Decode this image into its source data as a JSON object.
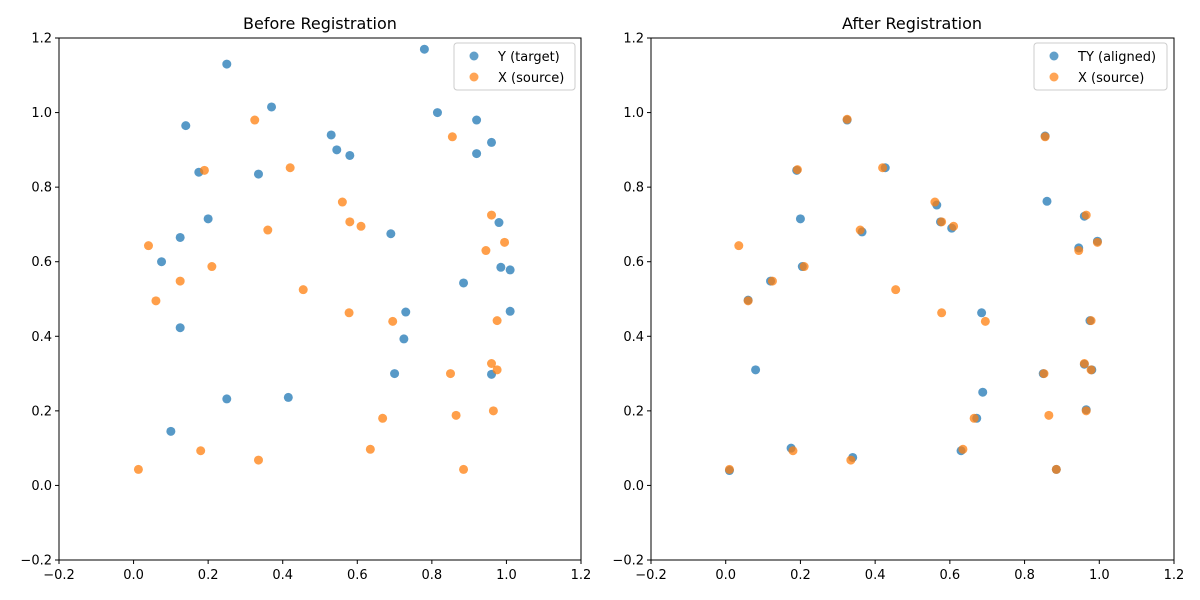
{
  "chart_data": [
    {
      "type": "scatter",
      "title": "Before Registration",
      "xlim": [
        -0.2,
        1.2
      ],
      "ylim": [
        -0.2,
        1.2
      ],
      "xticks": [
        "−0.2",
        "0.0",
        "0.2",
        "0.4",
        "0.6",
        "0.8",
        "1.0",
        "1.2"
      ],
      "yticks": [
        "−0.2",
        "0.0",
        "0.2",
        "0.4",
        "0.6",
        "0.8",
        "1.0",
        "1.2"
      ],
      "grid": false,
      "legend_placement": "top-right",
      "series": [
        {
          "name": "Y (target)",
          "color": "#1f77b4",
          "points": [
            [
              0.78,
              1.17
            ],
            [
              0.25,
              1.13
            ],
            [
              0.37,
              1.015
            ],
            [
              0.815,
              1.0
            ],
            [
              0.92,
              0.98
            ],
            [
              0.14,
              0.965
            ],
            [
              0.53,
              0.94
            ],
            [
              0.96,
              0.92
            ],
            [
              0.545,
              0.9
            ],
            [
              0.92,
              0.89
            ],
            [
              0.58,
              0.885
            ],
            [
              0.175,
              0.84
            ],
            [
              0.335,
              0.835
            ],
            [
              0.2,
              0.715
            ],
            [
              0.98,
              0.705
            ],
            [
              0.69,
              0.675
            ],
            [
              0.125,
              0.665
            ],
            [
              0.075,
              0.6
            ],
            [
              0.985,
              0.585
            ],
            [
              1.01,
              0.578
            ],
            [
              0.885,
              0.543
            ],
            [
              1.01,
              0.467
            ],
            [
              0.73,
              0.465
            ],
            [
              0.125,
              0.423
            ],
            [
              0.725,
              0.393
            ],
            [
              0.7,
              0.3
            ],
            [
              0.96,
              0.298
            ],
            [
              0.415,
              0.236
            ],
            [
              0.25,
              0.232
            ],
            [
              0.1,
              0.145
            ]
          ]
        },
        {
          "name": "X (source)",
          "color": "#ff7f0e",
          "points": [
            [
              0.325,
              0.98
            ],
            [
              0.855,
              0.935
            ],
            [
              0.42,
              0.852
            ],
            [
              0.19,
              0.845
            ],
            [
              0.56,
              0.76
            ],
            [
              0.96,
              0.725
            ],
            [
              0.58,
              0.707
            ],
            [
              0.61,
              0.695
            ],
            [
              0.36,
              0.685
            ],
            [
              0.04,
              0.643
            ],
            [
              0.995,
              0.652
            ],
            [
              0.945,
              0.63
            ],
            [
              0.21,
              0.587
            ],
            [
              0.125,
              0.548
            ],
            [
              0.455,
              0.525
            ],
            [
              0.06,
              0.495
            ],
            [
              0.578,
              0.463
            ],
            [
              0.975,
              0.442
            ],
            [
              0.695,
              0.44
            ],
            [
              0.96,
              0.327
            ],
            [
              0.975,
              0.31
            ],
            [
              0.85,
              0.3
            ],
            [
              0.965,
              0.2
            ],
            [
              0.865,
              0.188
            ],
            [
              0.668,
              0.18
            ],
            [
              0.635,
              0.097
            ],
            [
              0.18,
              0.093
            ],
            [
              0.335,
              0.068
            ],
            [
              0.013,
              0.043
            ],
            [
              0.885,
              0.043
            ]
          ]
        }
      ]
    },
    {
      "type": "scatter",
      "title": "After Registration",
      "xlim": [
        -0.2,
        1.2
      ],
      "ylim": [
        -0.2,
        1.2
      ],
      "xticks": [
        "−0.2",
        "0.0",
        "0.2",
        "0.4",
        "0.6",
        "0.8",
        "1.0",
        "1.2"
      ],
      "yticks": [
        "−0.2",
        "0.0",
        "0.2",
        "0.4",
        "0.6",
        "0.8",
        "1.0",
        "1.2"
      ],
      "grid": false,
      "legend_placement": "top-right",
      "series": [
        {
          "name": "TY (aligned)",
          "color": "#1f77b4",
          "points": [
            [
              0.325,
              0.98
            ],
            [
              0.855,
              0.937
            ],
            [
              0.427,
              0.852
            ],
            [
              0.19,
              0.845
            ],
            [
              0.565,
              0.752
            ],
            [
              0.86,
              0.762
            ],
            [
              0.96,
              0.722
            ],
            [
              0.575,
              0.707
            ],
            [
              0.605,
              0.69
            ],
            [
              0.365,
              0.68
            ],
            [
              0.2,
              0.715
            ],
            [
              0.995,
              0.655
            ],
            [
              0.945,
              0.637
            ],
            [
              0.205,
              0.587
            ],
            [
              0.12,
              0.548
            ],
            [
              0.06,
              0.497
            ],
            [
              0.685,
              0.463
            ],
            [
              0.975,
              0.442
            ],
            [
              0.08,
              0.31
            ],
            [
              0.96,
              0.325
            ],
            [
              0.98,
              0.31
            ],
            [
              0.85,
              0.3
            ],
            [
              0.688,
              0.25
            ],
            [
              0.965,
              0.203
            ],
            [
              0.672,
              0.18
            ],
            [
              0.63,
              0.093
            ],
            [
              0.175,
              0.1
            ],
            [
              0.34,
              0.075
            ],
            [
              0.01,
              0.04
            ],
            [
              0.885,
              0.043
            ]
          ]
        },
        {
          "name": "X (source)",
          "color": "#ff7f0e",
          "points": [
            [
              0.325,
              0.982
            ],
            [
              0.855,
              0.935
            ],
            [
              0.42,
              0.852
            ],
            [
              0.192,
              0.847
            ],
            [
              0.56,
              0.76
            ],
            [
              0.965,
              0.725
            ],
            [
              0.578,
              0.707
            ],
            [
              0.61,
              0.695
            ],
            [
              0.36,
              0.685
            ],
            [
              0.035,
              0.643
            ],
            [
              0.995,
              0.652
            ],
            [
              0.945,
              0.63
            ],
            [
              0.21,
              0.587
            ],
            [
              0.125,
              0.548
            ],
            [
              0.455,
              0.525
            ],
            [
              0.06,
              0.495
            ],
            [
              0.578,
              0.463
            ],
            [
              0.978,
              0.442
            ],
            [
              0.695,
              0.44
            ],
            [
              0.96,
              0.327
            ],
            [
              0.978,
              0.31
            ],
            [
              0.852,
              0.3
            ],
            [
              0.965,
              0.2
            ],
            [
              0.865,
              0.188
            ],
            [
              0.665,
              0.18
            ],
            [
              0.635,
              0.097
            ],
            [
              0.18,
              0.093
            ],
            [
              0.335,
              0.068
            ],
            [
              0.01,
              0.043
            ],
            [
              0.885,
              0.043
            ]
          ]
        }
      ]
    }
  ]
}
